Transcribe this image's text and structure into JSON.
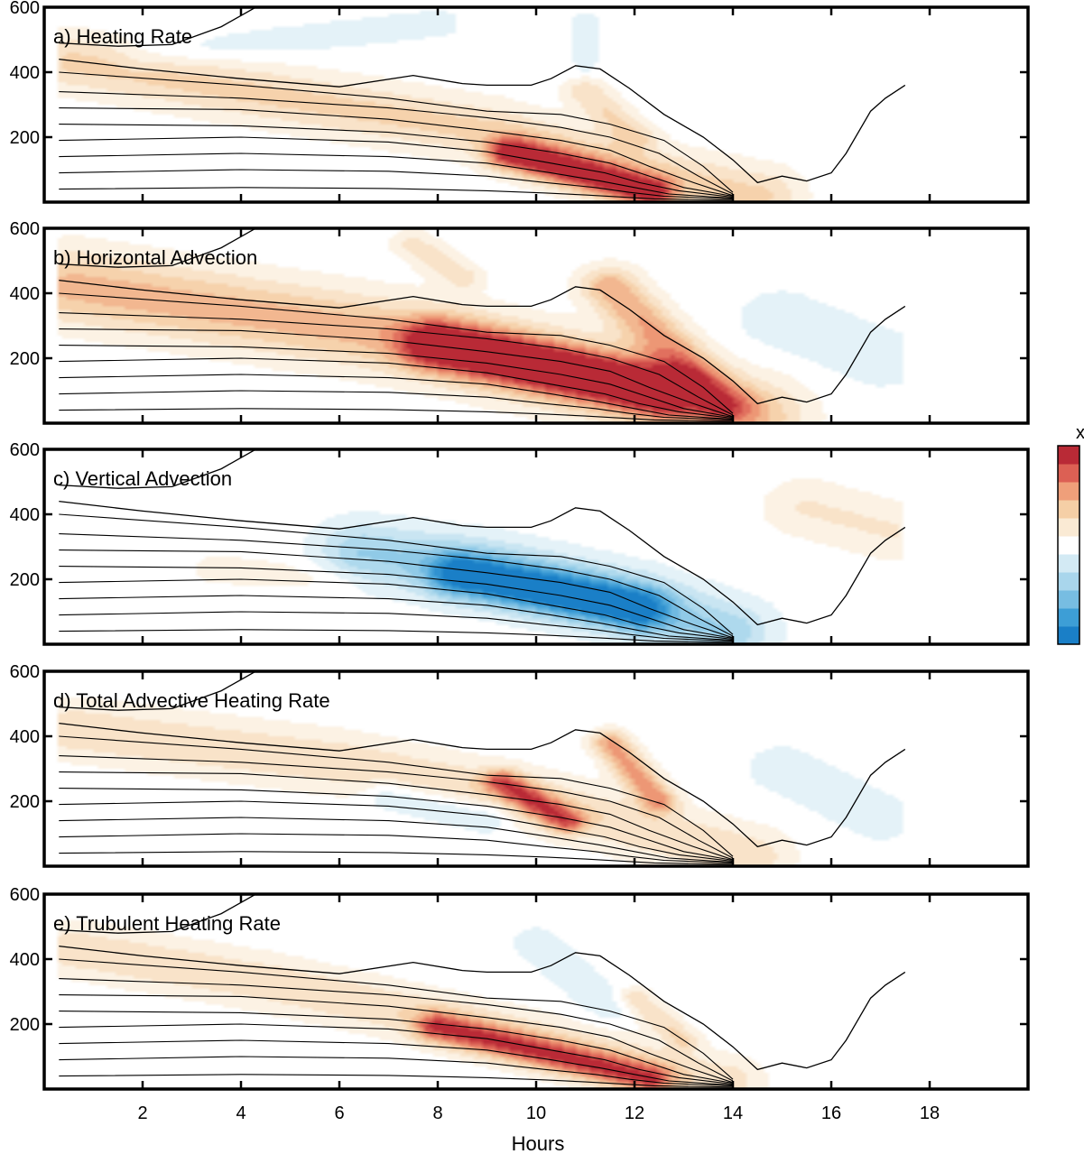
{
  "figure": {
    "xlabel": "Hours",
    "colorbar_visible_label": "x"
  },
  "chart_data": [
    {
      "type": "heatmap",
      "title": "a) Heating Rate",
      "ylim": [
        0,
        600
      ],
      "xlim": [
        0,
        20
      ],
      "xticks": [
        2,
        4,
        6,
        8,
        10,
        12,
        14,
        16,
        18
      ],
      "yticks": [
        200,
        400,
        600
      ],
      "zlim": [
        -1,
        1
      ],
      "blobs": [
        {
          "x": [
            0.6,
            4.5,
            9.0,
            12.8,
            14.5
          ],
          "y": [
            430,
            330,
            220,
            70,
            20
          ],
          "w": 1.0,
          "amp": 0.35
        },
        {
          "x": [
            9.5,
            12.3
          ],
          "y": [
            150,
            30
          ],
          "w": 0.6,
          "amp": 0.95
        },
        {
          "x": [
            11.0,
            12.0
          ],
          "y": [
            340,
            200
          ],
          "w": 0.5,
          "amp": 0.3
        },
        {
          "x": [
            2.0,
            8.0
          ],
          "y": [
            450,
            550
          ],
          "w": 0.6,
          "amp": -0.12
        },
        {
          "x": [
            11.0,
            11.0
          ],
          "y": [
            560,
            420
          ],
          "w": 0.35,
          "amp": -0.12
        }
      ]
    },
    {
      "type": "heatmap",
      "title": "b) Horizontal Advection",
      "ylim": [
        0,
        600
      ],
      "xlim": [
        0,
        20
      ],
      "xticks": [
        2,
        4,
        6,
        8,
        10,
        12,
        14,
        16,
        18
      ],
      "yticks": [
        200,
        400,
        600
      ],
      "zlim": [
        -1,
        1
      ],
      "blobs": [
        {
          "x": [
            0.6,
            4.5,
            8.0,
            11.5,
            14.3
          ],
          "y": [
            420,
            330,
            250,
            130,
            20
          ],
          "w": 1.3,
          "amp": 0.5
        },
        {
          "x": [
            8.0,
            12.5
          ],
          "y": [
            240,
            100
          ],
          "w": 0.9,
          "amp": 0.95
        },
        {
          "x": [
            11.5,
            13.8
          ],
          "y": [
            420,
            60
          ],
          "w": 0.7,
          "amp": 0.55
        },
        {
          "x": [
            15.0,
            17.0
          ],
          "y": [
            320,
            200
          ],
          "w": 1.0,
          "amp": -0.18
        },
        {
          "x": [
            7.5,
            8.5
          ],
          "y": [
            550,
            450
          ],
          "w": 0.5,
          "amp": 0.25
        }
      ]
    },
    {
      "type": "heatmap",
      "title": "c) Vertical Advection",
      "ylim": [
        0,
        600
      ],
      "xlim": [
        0,
        20
      ],
      "xticks": [
        2,
        4,
        6,
        8,
        10,
        12,
        14,
        16,
        18
      ],
      "yticks": [
        200,
        400,
        600
      ],
      "zlim": [
        -1,
        1
      ],
      "blobs": [
        {
          "x": [
            6.5,
            9.0,
            12.0,
            13.8
          ],
          "y": [
            280,
            230,
            130,
            40
          ],
          "w": 1.1,
          "amp": -0.45
        },
        {
          "x": [
            8.5,
            12.0
          ],
          "y": [
            210,
            110
          ],
          "w": 0.8,
          "amp": -0.85
        },
        {
          "x": [
            15.5,
            17.2
          ],
          "y": [
            420,
            350
          ],
          "w": 1.0,
          "amp": 0.2
        },
        {
          "x": [
            3.5,
            6.0
          ],
          "y": [
            230,
            200
          ],
          "w": 0.6,
          "amp": 0.12
        }
      ]
    },
    {
      "type": "heatmap",
      "title": "d) Total Advective Heating Rate",
      "ylim": [
        0,
        600
      ],
      "xlim": [
        0,
        20
      ],
      "xticks": [
        2,
        4,
        6,
        8,
        10,
        12,
        14,
        16,
        18
      ],
      "yticks": [
        200,
        400,
        600
      ],
      "zlim": [
        -1,
        1
      ],
      "blobs": [
        {
          "x": [
            0.6,
            6.0,
            10.0,
            14.3
          ],
          "y": [
            420,
            320,
            200,
            30
          ],
          "w": 1.0,
          "amp": 0.3
        },
        {
          "x": [
            9.3,
            10.6
          ],
          "y": [
            260,
            140
          ],
          "w": 0.45,
          "amp": 0.7
        },
        {
          "x": [
            11.5,
            12.5
          ],
          "y": [
            380,
            200
          ],
          "w": 0.45,
          "amp": 0.6
        },
        {
          "x": [
            7.0,
            9.0
          ],
          "y": [
            220,
            150
          ],
          "w": 0.6,
          "amp": -0.25
        },
        {
          "x": [
            15.0,
            17.0
          ],
          "y": [
            300,
            150
          ],
          "w": 1.0,
          "amp": -0.12
        }
      ]
    },
    {
      "type": "heatmap",
      "title": "e) Trubulent Heating Rate",
      "ylim": [
        0,
        600
      ],
      "xlim": [
        0,
        20
      ],
      "xticks": [
        2,
        4,
        6,
        8,
        10,
        12,
        14,
        16,
        18
      ],
      "yticks": [
        200,
        400,
        600
      ],
      "zlim": [
        -1,
        1
      ],
      "blobs": [
        {
          "x": [
            0.6,
            4.5,
            8.5,
            12.5,
            13.8
          ],
          "y": [
            430,
            330,
            200,
            60,
            20
          ],
          "w": 0.9,
          "amp": 0.3
        },
        {
          "x": [
            8.0,
            12.3
          ],
          "y": [
            190,
            30
          ],
          "w": 0.55,
          "amp": 0.75
        },
        {
          "x": [
            10.0,
            11.5
          ],
          "y": [
            450,
            250
          ],
          "w": 0.6,
          "amp": -0.15
        },
        {
          "x": [
            12.0,
            13.0
          ],
          "y": [
            280,
            150
          ],
          "w": 0.4,
          "amp": 0.3
        }
      ]
    }
  ],
  "contours": {
    "boundary": {
      "x": [
        0.3,
        2.0,
        4.0,
        6.0,
        7.5,
        8.5,
        9.0,
        9.9,
        10.3,
        10.8,
        11.3,
        11.9,
        12.6,
        13.4,
        14.0,
        14.5,
        15.0,
        15.5,
        16.0,
        16.3,
        16.8,
        17.1,
        17.5
      ],
      "y": [
        440,
        410,
        380,
        355,
        390,
        365,
        360,
        360,
        380,
        420,
        410,
        350,
        270,
        200,
        130,
        60,
        80,
        65,
        90,
        150,
        280,
        320,
        360
      ]
    },
    "top_curve": {
      "x": [
        0.3,
        1.5,
        2.6,
        3.6,
        4.3
      ],
      "y": [
        490,
        480,
        485,
        540,
        600
      ]
    },
    "levels": [
      {
        "x": [
          0.3,
          4.0,
          7.0,
          9.0,
          10.5,
          11.5,
          12.6,
          13.4,
          14.0
        ],
        "y": [
          400,
          360,
          320,
          280,
          270,
          240,
          190,
          110,
          30
        ]
      },
      {
        "x": [
          0.3,
          4.0,
          7.0,
          9.0,
          10.5,
          11.5,
          12.5,
          13.3,
          14.0
        ],
        "y": [
          340,
          320,
          290,
          260,
          230,
          200,
          150,
          80,
          25
        ]
      },
      {
        "x": [
          0.3,
          4.0,
          7.0,
          9.0,
          10.5,
          11.5,
          12.3,
          13.2,
          14.0
        ],
        "y": [
          290,
          285,
          255,
          220,
          190,
          160,
          110,
          60,
          20
        ]
      },
      {
        "x": [
          0.3,
          4.0,
          7.0,
          9.0,
          10.5,
          11.5,
          12.2,
          13.0,
          14.0
        ],
        "y": [
          240,
          235,
          215,
          185,
          150,
          120,
          85,
          45,
          18
        ]
      },
      {
        "x": [
          0.3,
          4.0,
          7.0,
          9.0,
          10.3,
          11.4,
          12.1,
          12.9,
          14.0
        ],
        "y": [
          190,
          200,
          185,
          155,
          120,
          90,
          60,
          35,
          15
        ]
      },
      {
        "x": [
          0.3,
          4.0,
          7.0,
          9.0,
          10.3,
          11.3,
          12.0,
          12.7,
          14.0
        ],
        "y": [
          140,
          150,
          140,
          120,
          90,
          65,
          45,
          25,
          12
        ]
      },
      {
        "x": [
          0.3,
          4.0,
          7.0,
          9.0,
          10.2,
          11.2,
          11.9,
          12.6,
          14.0
        ],
        "y": [
          90,
          100,
          95,
          80,
          60,
          45,
          30,
          18,
          10
        ]
      },
      {
        "x": [
          0.3,
          4.0,
          7.0,
          9.0,
          10.2,
          11.0,
          11.8,
          12.4,
          14.0
        ],
        "y": [
          40,
          45,
          42,
          35,
          28,
          22,
          15,
          10,
          6
        ]
      }
    ]
  },
  "colorbar": {
    "zlim": [
      -1,
      1
    ],
    "colors": [
      "#1a7fc7",
      "#3d9ed6",
      "#77bde2",
      "#a9d6ec",
      "#d3eaf4",
      "#ffffff",
      "#faead4",
      "#f5cfa6",
      "#ef9f7a",
      "#dc6054",
      "#b92a36"
    ]
  }
}
